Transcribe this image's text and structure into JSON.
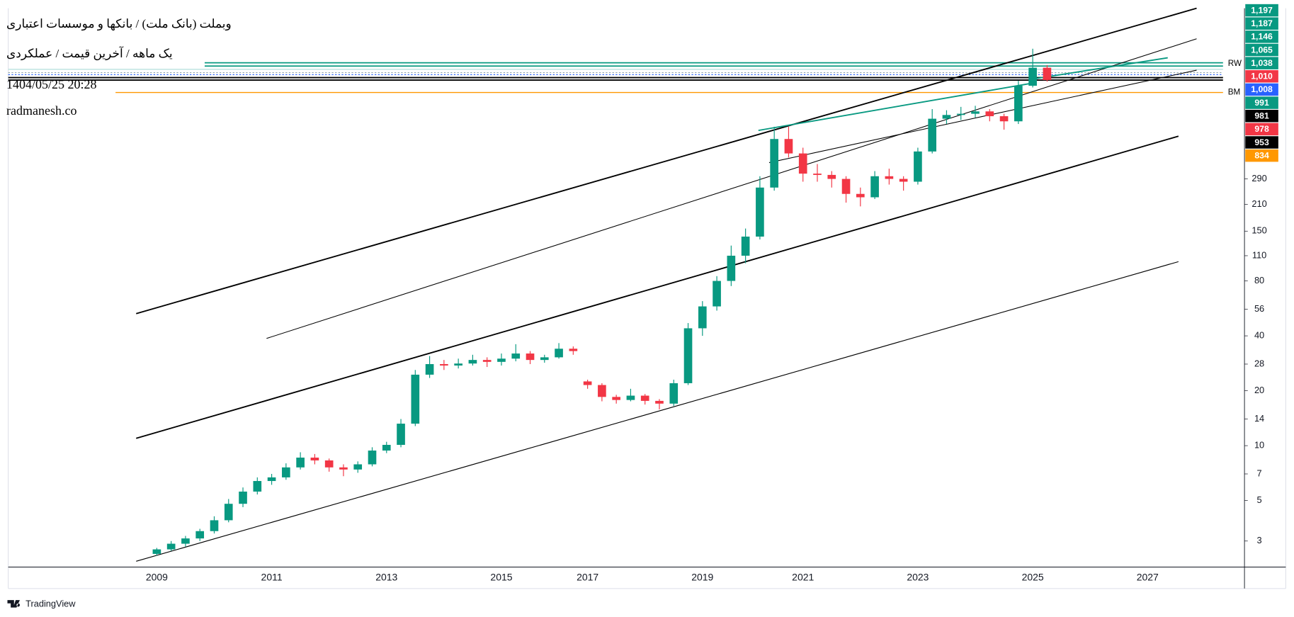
{
  "chart_data": {
    "type": "candlestick",
    "title": "وبملت (بانک ملت) / بانکها و موسسات اعتباری",
    "subtitle": "یک ماهه / آخرین قیمت / عملکردی",
    "annotations": [
      "1404/05/25 20:28",
      "radmanesh.co"
    ],
    "drawing_labels": [
      "RW",
      "BM"
    ],
    "brand": "TradingView",
    "log_scale": true,
    "grid": false,
    "up_color": "#089981",
    "down_color": "#f23645",
    "ylim": [
      2.16,
      2500
    ],
    "yticks": [
      3,
      5,
      7,
      10,
      14,
      20,
      28,
      40,
      56,
      80,
      110,
      150,
      210,
      290
    ],
    "price_labels": [
      {
        "label": "1,197",
        "color": "#089981"
      },
      {
        "label": "1,187",
        "color": "#089981"
      },
      {
        "label": "1,146",
        "color": "#089981"
      },
      {
        "label": "1,065",
        "color": "#089981"
      },
      {
        "label": "1,038",
        "color": "#089981"
      },
      {
        "label": "1,010",
        "color": "#f23645"
      },
      {
        "label": "1,008",
        "color": "#2962ff"
      },
      {
        "label": "991",
        "color": "#089981"
      },
      {
        "label": "981",
        "color": "#000000"
      },
      {
        "label": "978",
        "color": "#f23645"
      },
      {
        "label": "953",
        "color": "#000000"
      },
      {
        "label": "834",
        "color": "#ff9800"
      }
    ],
    "categories": [
      "2009",
      null,
      null,
      null,
      null,
      null,
      null,
      null,
      "2011",
      null,
      null,
      null,
      null,
      null,
      null,
      null,
      "2013",
      null,
      null,
      null,
      null,
      null,
      null,
      null,
      "2015",
      null,
      null,
      null,
      null,
      null,
      "2017",
      null,
      null,
      null,
      null,
      null,
      null,
      null,
      "2019",
      null,
      null,
      null,
      null,
      null,
      null,
      "2021",
      null,
      null,
      null,
      null,
      null,
      null,
      null,
      "2023",
      null,
      null,
      null,
      null,
      null,
      null,
      null,
      "2025",
      null,
      null,
      null,
      null,
      null,
      null,
      null,
      "2027"
    ],
    "open": [
      2.55,
      2.7,
      2.9,
      3.1,
      3.4,
      3.9,
      4.8,
      5.6,
      6.4,
      6.7,
      7.6,
      8.6,
      8.3,
      7.6,
      7.4,
      7.9,
      9.4,
      10.1,
      13.2,
      24.5,
      28.0,
      27.5,
      28.2,
      29.5,
      28.8,
      30.0,
      32.0,
      29.5,
      30.5,
      34.0,
      22.5,
      21.5,
      18.5,
      17.8,
      18.8,
      17.6,
      17.0,
      22.0,
      44.0,
      58.0,
      80,
      110,
      140,
      260,
      480,
      400,
      310,
      305,
      290,
      240,
      230,
      300,
      290,
      280,
      410,
      620,
      650,
      660,
      680,
      640,
      600,
      940,
      1180,
      null,
      null,
      null,
      null,
      null,
      null,
      null
    ],
    "high": [
      2.75,
      3.0,
      3.2,
      3.5,
      4.1,
      5.1,
      5.9,
      6.7,
      7.0,
      8.0,
      9.2,
      9.0,
      8.5,
      7.9,
      8.2,
      9.8,
      10.5,
      14.0,
      26.0,
      31.0,
      29.5,
      30.0,
      31.5,
      30.5,
      32.0,
      36.0,
      33.0,
      31.5,
      36.5,
      35.0,
      23.0,
      22.0,
      19.0,
      20.5,
      19.2,
      18.0,
      23.0,
      47.0,
      62.0,
      85.0,
      125,
      155,
      300,
      560,
      560,
      430,
      350,
      320,
      300,
      260,
      320,
      330,
      300,
      430,
      700,
      690,
      720,
      730,
      700,
      660,
      1000,
      1500,
      1220,
      null,
      null,
      null,
      null,
      null,
      null,
      null
    ],
    "low": [
      2.5,
      2.65,
      2.8,
      3.0,
      3.3,
      3.8,
      4.6,
      5.4,
      6.1,
      6.5,
      7.4,
      7.9,
      7.2,
      6.8,
      7.1,
      7.7,
      9.1,
      9.8,
      12.8,
      23.5,
      26.0,
      26.5,
      27.5,
      27.0,
      27.5,
      29.0,
      28.0,
      28.5,
      30.0,
      31.5,
      20.5,
      17.5,
      17.0,
      17.5,
      16.8,
      15.8,
      16.5,
      21.5,
      40.0,
      55.0,
      75,
      100,
      135,
      250,
      380,
      280,
      280,
      260,
      215,
      205,
      225,
      270,
      250,
      270,
      400,
      580,
      610,
      630,
      600,
      540,
      580,
      920,
      990,
      null,
      null,
      null,
      null,
      null,
      null,
      null
    ],
    "close": [
      2.7,
      2.9,
      3.1,
      3.4,
      3.9,
      4.8,
      5.6,
      6.4,
      6.7,
      7.6,
      8.6,
      8.3,
      7.6,
      7.4,
      7.9,
      9.4,
      10.1,
      13.2,
      24.5,
      28.0,
      27.5,
      28.2,
      29.5,
      28.8,
      30.0,
      32.0,
      29.5,
      30.5,
      34.0,
      33.0,
      21.5,
      18.5,
      17.8,
      18.8,
      17.6,
      17.0,
      22.0,
      44.0,
      58.0,
      80.0,
      110,
      140,
      260,
      480,
      400,
      310,
      305,
      290,
      240,
      230,
      300,
      290,
      280,
      410,
      620,
      650,
      660,
      680,
      640,
      600,
      940,
      1180,
      1010,
      null,
      null,
      null,
      null,
      null,
      null,
      null
    ]
  }
}
